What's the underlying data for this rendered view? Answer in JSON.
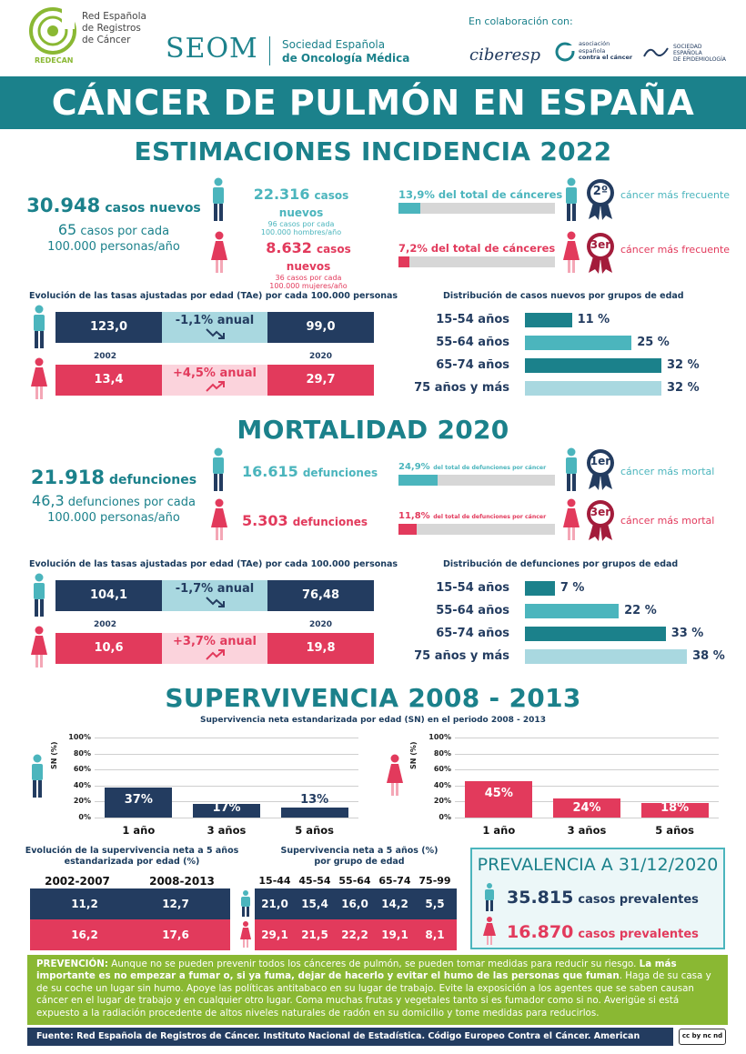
{
  "header": {
    "redecan_lines": [
      "Red Española",
      "de Registros",
      "de Cáncer"
    ],
    "redecan_short": "REDECAN",
    "seom": "SEOM",
    "seom_sub1": "Sociedad  Española",
    "seom_sub2": "de Oncología Médica",
    "collab": "En colaboración con:",
    "ciberesp": "ciberesp",
    "aecc_lines": [
      "asociación",
      "española",
      "contra el cáncer"
    ],
    "see_lines": [
      "SOCIEDAD",
      "ESPAÑOLA",
      "DE EPIDEMIOLOGÍA"
    ]
  },
  "banner": "CÁNCER DE PULMÓN EN ESPAÑA",
  "incidencia": {
    "title": "ESTIMACIONES INCIDENCIA 2022",
    "total_num": "30.948",
    "total_label": "casos nuevos",
    "total_rate_num": "65",
    "total_rate_label": "casos por cada",
    "total_rate_label2": "100.000 personas/año",
    "men_num": "22.316",
    "men_label": "casos nuevos",
    "men_rate1": "96 casos por cada",
    "men_rate2": "100.000 hombres/año",
    "women_num": "8.632",
    "women_label": "casos nuevos",
    "women_rate1": "36 casos por cada",
    "women_rate2": "100.000 mujeres/año",
    "men_share_label": "13,9% del total de cánceres",
    "men_share": 13.9,
    "women_share_label": "7,2% del total de cánceres",
    "women_share": 7.2,
    "men_rank": "2º",
    "women_rank": "3er",
    "men_rank_label": "cáncer más frecuente",
    "women_rank_label": "cáncer más frecuente",
    "trend_title": "Evolución de las tasas ajustadas por edad (TAe) por cada 100.000 personas",
    "men_2002": "123,0",
    "men_change": "-1,1% anual",
    "men_2020": "99,0",
    "year_a": "2002",
    "year_b": "2020",
    "women_2002": "13,4",
    "women_change": "+4,5% anual",
    "women_2020": "29,7",
    "age_title": "Distribución de casos nuevos por grupos de edad",
    "ages": [
      {
        "label": "15-54 años",
        "pct": 11,
        "text": "11 %"
      },
      {
        "label": "55-64 años",
        "pct": 25,
        "text": "25 %"
      },
      {
        "label": "65-74 años",
        "pct": 32,
        "text": "32 %"
      },
      {
        "label": "75 años y más",
        "pct": 32,
        "text": "32 %"
      }
    ]
  },
  "mortalidad": {
    "title": "MORTALIDAD 2020",
    "total_num": "21.918",
    "total_label": "defunciones",
    "total_rate_num": "46,3",
    "total_rate_label": "defunciones por cada",
    "total_rate_label2": "100.000 personas/año",
    "men_num": "16.615",
    "men_label": "defunciones",
    "women_num": "5.303",
    "women_label": "defunciones",
    "men_share_pct": "24,9%",
    "men_share_txt": "del total de defunciones por cáncer",
    "men_share": 24.9,
    "women_share_pct": "11,8%",
    "women_share_txt": "del total de defunciones por cáncer",
    "women_share": 11.8,
    "men_rank": "1er",
    "women_rank": "3er",
    "men_rank_label": "cáncer más mortal",
    "women_rank_label": "cáncer más mortal",
    "trend_title": "Evolución de las tasas ajustadas por edad (TAe) por cada 100.000 personas",
    "men_2002": "104,1",
    "men_change": "-1,7% anual",
    "men_2020": "76,48",
    "year_a": "2002",
    "year_b": "2020",
    "women_2002": "10,6",
    "women_change": "+3,7% anual",
    "women_2020": "19,8",
    "age_title": "Distribución de defunciones por grupos de edad",
    "ages": [
      {
        "label": "15-54 años",
        "pct": 7,
        "text": "7 %"
      },
      {
        "label": "55-64 años",
        "pct": 22,
        "text": "22 %"
      },
      {
        "label": "65-74 años",
        "pct": 33,
        "text": "33 %"
      },
      {
        "label": "75 años y más",
        "pct": 38,
        "text": "38 %"
      }
    ]
  },
  "supervivencia": {
    "title": "SUPERVIVENCIA 2008 - 2013",
    "subtitle": "Supervivencia neta estandarizada por edad (SN) en el periodo 2008 - 2013",
    "ylabel": "SN (%)",
    "yticks": [
      "100%",
      "80%",
      "60%",
      "40%",
      "20%",
      "0%"
    ],
    "evol_title1": "Evolución de la supervivencia neta a 5 años",
    "evol_title2": "estandarizada por edad (%)",
    "evol_cols": [
      "2002-2007",
      "2008-2013"
    ],
    "evol_men": [
      "11,2",
      "12,7"
    ],
    "evol_women": [
      "16,2",
      "17,6"
    ],
    "grp_title1": "Supervivencia neta a 5 años (%)",
    "grp_title2": "por grupo de edad",
    "grp_cols": [
      "15-44",
      "45-54",
      "55-64",
      "65-74",
      "75-99"
    ],
    "grp_men": [
      "21,0",
      "15,4",
      "16,0",
      "14,2",
      "5,5"
    ],
    "grp_women": [
      "29,1",
      "21,5",
      "22,2",
      "19,1",
      "8,1"
    ]
  },
  "prevalencia": {
    "title": "PREVALENCIA A 31/12/2020",
    "men_num": "35.815",
    "men_label": "casos prevalentes",
    "women_num": "16.870",
    "women_label": "casos prevalentes"
  },
  "prevencion": {
    "lead": "PREVENCIÓN:",
    "text1": " Aunque no se pueden prevenir todos los cánceres de pulmón, se pueden tomar medidas para reducir su riesgo. ",
    "bold": "La más importante es no empezar a fumar o, si ya fuma, dejar de hacerlo y evitar el humo de las personas que fuman",
    "text2": ". Haga de su casa y de su coche un lugar sin humo. Apoye las políticas antitabaco en su lugar de trabajo. Evite la exposición a los agentes que se saben causan cáncer en el lugar de trabajo y en cualquier otro lugar. Coma muchas frutas y vegetales tanto si es fumador como si no. Averigüe si está expuesto a la radiación procedente de altos niveles naturales de radón en su domicilio y tome medidas para reducirlos."
  },
  "fuente": "Fuente: Red Española de Registros de Cáncer. Instituto Nacional de Estadística. Código Europeo Contra el Cáncer. American Cancer Society.",
  "license": "cc by nc nd",
  "colors": {
    "teal": "#1b818b",
    "teal_light": "#4bb5bd",
    "pink": "#e23a5c",
    "navy": "#233c60",
    "light_blue": "#a9d8e0",
    "green": "#8ab833"
  },
  "chart_data": [
    {
      "type": "bar",
      "categories": [
        "1 año",
        "3 años",
        "5 años"
      ],
      "series": [
        {
          "values": [
            37,
            17,
            13
          ]
        }
      ],
      "labels": [
        "37%",
        "17%",
        "13%"
      ],
      "ylabel": "SN (%)",
      "ylim": [
        0,
        100
      ],
      "color": "#233c60",
      "grid": true
    },
    {
      "type": "bar",
      "categories": [
        "1 año",
        "3 años",
        "5 años"
      ],
      "series": [
        {
          "values": [
            45,
            24,
            18
          ]
        }
      ],
      "labels": [
        "45%",
        "24%",
        "18%"
      ],
      "ylabel": "SN (%)",
      "ylim": [
        0,
        100
      ],
      "color": "#e23a5c",
      "grid": true
    }
  ]
}
